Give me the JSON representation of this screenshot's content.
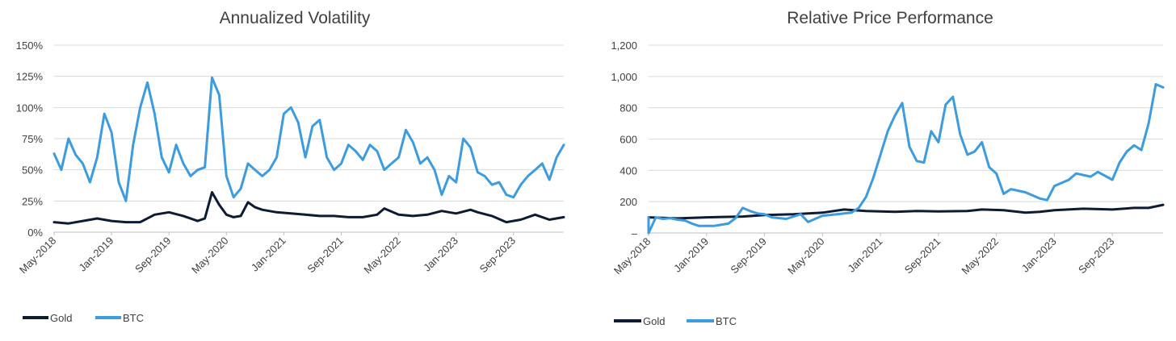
{
  "colors": {
    "gold": "#0d1b33",
    "btc": "#3d9be0",
    "grid": "#d9d9d9",
    "text": "#404040"
  },
  "chart_data": [
    {
      "type": "line",
      "title": "Annualized Volatility",
      "xlabel": "",
      "ylabel": "",
      "x_start": "2018-05",
      "x_end": "2024-04",
      "ylim": [
        0,
        150
      ],
      "yticks": [
        0,
        25,
        50,
        75,
        100,
        125,
        150
      ],
      "ytick_labels": [
        "0%",
        "25%",
        "50%",
        "75%",
        "100%",
        "125%",
        "150%"
      ],
      "xtick_labels": [
        "May-2018",
        "Jan-2019",
        "Sep-2019",
        "May-2020",
        "Jan-2021",
        "Sep-2021",
        "May-2022",
        "Jan-2023",
        "Sep-2023"
      ],
      "xtick_dates": [
        "2018-05",
        "2019-01",
        "2019-09",
        "2020-05",
        "2021-01",
        "2021-09",
        "2022-05",
        "2023-01",
        "2023-09"
      ],
      "grid": true,
      "legend": "bottom-left",
      "series": [
        {
          "name": "Gold",
          "color_key": "gold",
          "points": [
            [
              "2018-05",
              8
            ],
            [
              "2018-07",
              7
            ],
            [
              "2018-09",
              9
            ],
            [
              "2018-11",
              11
            ],
            [
              "2019-01",
              9
            ],
            [
              "2019-03",
              8
            ],
            [
              "2019-05",
              8
            ],
            [
              "2019-07",
              14
            ],
            [
              "2019-09",
              16
            ],
            [
              "2019-11",
              13
            ],
            [
              "2020-01",
              9
            ],
            [
              "2020-02",
              11
            ],
            [
              "2020-03",
              32
            ],
            [
              "2020-04",
              22
            ],
            [
              "2020-05",
              14
            ],
            [
              "2020-06",
              12
            ],
            [
              "2020-07",
              13
            ],
            [
              "2020-08",
              24
            ],
            [
              "2020-09",
              20
            ],
            [
              "2020-10",
              18
            ],
            [
              "2020-12",
              16
            ],
            [
              "2021-02",
              15
            ],
            [
              "2021-04",
              14
            ],
            [
              "2021-06",
              13
            ],
            [
              "2021-08",
              13
            ],
            [
              "2021-10",
              12
            ],
            [
              "2021-12",
              12
            ],
            [
              "2022-02",
              14
            ],
            [
              "2022-03",
              19
            ],
            [
              "2022-05",
              14
            ],
            [
              "2022-07",
              13
            ],
            [
              "2022-09",
              14
            ],
            [
              "2022-11",
              17
            ],
            [
              "2023-01",
              15
            ],
            [
              "2023-03",
              18
            ],
            [
              "2023-04",
              16
            ],
            [
              "2023-06",
              13
            ],
            [
              "2023-08",
              8
            ],
            [
              "2023-10",
              10
            ],
            [
              "2023-12",
              14
            ],
            [
              "2024-02",
              10
            ],
            [
              "2024-04",
              12
            ]
          ]
        },
        {
          "name": "BTC",
          "color_key": "btc",
          "points": [
            [
              "2018-05",
              63
            ],
            [
              "2018-06",
              50
            ],
            [
              "2018-07",
              75
            ],
            [
              "2018-08",
              62
            ],
            [
              "2018-09",
              55
            ],
            [
              "2018-10",
              40
            ],
            [
              "2018-11",
              60
            ],
            [
              "2018-12",
              95
            ],
            [
              "2019-01",
              80
            ],
            [
              "2019-02",
              40
            ],
            [
              "2019-03",
              25
            ],
            [
              "2019-04",
              70
            ],
            [
              "2019-05",
              100
            ],
            [
              "2019-06",
              120
            ],
            [
              "2019-07",
              95
            ],
            [
              "2019-08",
              60
            ],
            [
              "2019-09",
              48
            ],
            [
              "2019-10",
              70
            ],
            [
              "2019-11",
              55
            ],
            [
              "2019-12",
              45
            ],
            [
              "2020-01",
              50
            ],
            [
              "2020-02",
              52
            ],
            [
              "2020-03",
              124
            ],
            [
              "2020-04",
              110
            ],
            [
              "2020-05",
              45
            ],
            [
              "2020-06",
              28
            ],
            [
              "2020-07",
              35
            ],
            [
              "2020-08",
              55
            ],
            [
              "2020-09",
              50
            ],
            [
              "2020-10",
              45
            ],
            [
              "2020-11",
              50
            ],
            [
              "2020-12",
              60
            ],
            [
              "2021-01",
              95
            ],
            [
              "2021-02",
              100
            ],
            [
              "2021-03",
              88
            ],
            [
              "2021-04",
              60
            ],
            [
              "2021-05",
              85
            ],
            [
              "2021-06",
              90
            ],
            [
              "2021-07",
              60
            ],
            [
              "2021-08",
              50
            ],
            [
              "2021-09",
              55
            ],
            [
              "2021-10",
              70
            ],
            [
              "2021-11",
              65
            ],
            [
              "2021-12",
              58
            ],
            [
              "2022-01",
              70
            ],
            [
              "2022-02",
              65
            ],
            [
              "2022-03",
              50
            ],
            [
              "2022-04",
              55
            ],
            [
              "2022-05",
              60
            ],
            [
              "2022-06",
              82
            ],
            [
              "2022-07",
              72
            ],
            [
              "2022-08",
              55
            ],
            [
              "2022-09",
              60
            ],
            [
              "2022-10",
              50
            ],
            [
              "2022-11",
              30
            ],
            [
              "2022-12",
              45
            ],
            [
              "2023-01",
              40
            ],
            [
              "2023-02",
              75
            ],
            [
              "2023-03",
              68
            ],
            [
              "2023-04",
              48
            ],
            [
              "2023-05",
              45
            ],
            [
              "2023-06",
              38
            ],
            [
              "2023-07",
              40
            ],
            [
              "2023-08",
              30
            ],
            [
              "2023-09",
              28
            ],
            [
              "2023-10",
              38
            ],
            [
              "2023-11",
              45
            ],
            [
              "2023-12",
              50
            ],
            [
              "2024-01",
              55
            ],
            [
              "2024-02",
              42
            ],
            [
              "2024-03",
              60
            ],
            [
              "2024-04",
              70
            ]
          ]
        }
      ]
    },
    {
      "type": "line",
      "title": "Relative Price Performance",
      "xlabel": "",
      "ylabel": "",
      "x_start": "2018-05",
      "x_end": "2024-04",
      "ylim": [
        0,
        1200
      ],
      "yticks": [
        0,
        200,
        400,
        600,
        800,
        1000,
        1200
      ],
      "ytick_labels": [
        "–",
        "200",
        "400",
        "600",
        "800",
        "1,000",
        "1,200"
      ],
      "xtick_labels": [
        "May-2018",
        "Jan-2019",
        "Sep-2019",
        "May-2020",
        "Jan-2021",
        "Sep-2021",
        "May-2022",
        "Jan-2023",
        "Sep-2023"
      ],
      "xtick_dates": [
        "2018-05",
        "2019-01",
        "2019-09",
        "2020-05",
        "2021-01",
        "2021-09",
        "2022-05",
        "2023-01",
        "2023-09"
      ],
      "grid": true,
      "legend": "bottom-left",
      "series": [
        {
          "name": "Gold",
          "color_key": "gold",
          "points": [
            [
              "2018-05",
              100
            ],
            [
              "2018-09",
              93
            ],
            [
              "2019-01",
              100
            ],
            [
              "2019-06",
              105
            ],
            [
              "2019-09",
              115
            ],
            [
              "2020-01",
              120
            ],
            [
              "2020-05",
              130
            ],
            [
              "2020-08",
              150
            ],
            [
              "2020-11",
              140
            ],
            [
              "2021-03",
              135
            ],
            [
              "2021-06",
              140
            ],
            [
              "2021-09",
              138
            ],
            [
              "2022-01",
              140
            ],
            [
              "2022-03",
              150
            ],
            [
              "2022-06",
              145
            ],
            [
              "2022-09",
              130
            ],
            [
              "2022-11",
              135
            ],
            [
              "2023-01",
              145
            ],
            [
              "2023-05",
              155
            ],
            [
              "2023-09",
              150
            ],
            [
              "2023-12",
              160
            ],
            [
              "2024-02",
              160
            ],
            [
              "2024-04",
              180
            ]
          ]
        },
        {
          "name": "BTC",
          "color_key": "btc",
          "points": [
            [
              "2018-05",
              100
            ],
            [
              "2018-05",
              0
            ],
            [
              "2018-06",
              100
            ],
            [
              "2018-07",
              90
            ],
            [
              "2018-08",
              95
            ],
            [
              "2018-09",
              85
            ],
            [
              "2018-10",
              80
            ],
            [
              "2018-11",
              60
            ],
            [
              "2018-12",
              45
            ],
            [
              "2019-02",
              45
            ],
            [
              "2019-04",
              60
            ],
            [
              "2019-05",
              95
            ],
            [
              "2019-06",
              160
            ],
            [
              "2019-07",
              140
            ],
            [
              "2019-08",
              125
            ],
            [
              "2019-09",
              120
            ],
            [
              "2019-10",
              100
            ],
            [
              "2019-12",
              90
            ],
            [
              "2020-02",
              120
            ],
            [
              "2020-03",
              70
            ],
            [
              "2020-05",
              110
            ],
            [
              "2020-07",
              120
            ],
            [
              "2020-09",
              130
            ],
            [
              "2020-10",
              160
            ],
            [
              "2020-11",
              230
            ],
            [
              "2020-12",
              350
            ],
            [
              "2021-01",
              500
            ],
            [
              "2021-02",
              650
            ],
            [
              "2021-03",
              750
            ],
            [
              "2021-04",
              830
            ],
            [
              "2021-05",
              550
            ],
            [
              "2021-06",
              460
            ],
            [
              "2021-07",
              450
            ],
            [
              "2021-08",
              650
            ],
            [
              "2021-09",
              580
            ],
            [
              "2021-10",
              820
            ],
            [
              "2021-11",
              870
            ],
            [
              "2021-12",
              630
            ],
            [
              "2022-01",
              500
            ],
            [
              "2022-02",
              520
            ],
            [
              "2022-03",
              580
            ],
            [
              "2022-04",
              420
            ],
            [
              "2022-05",
              380
            ],
            [
              "2022-06",
              250
            ],
            [
              "2022-07",
              280
            ],
            [
              "2022-09",
              260
            ],
            [
              "2022-11",
              220
            ],
            [
              "2022-12",
              210
            ],
            [
              "2023-01",
              300
            ],
            [
              "2023-03",
              340
            ],
            [
              "2023-04",
              380
            ],
            [
              "2023-06",
              360
            ],
            [
              "2023-07",
              390
            ],
            [
              "2023-09",
              340
            ],
            [
              "2023-10",
              450
            ],
            [
              "2023-11",
              520
            ],
            [
              "2023-12",
              560
            ],
            [
              "2024-01",
              530
            ],
            [
              "2024-02",
              700
            ],
            [
              "2024-03",
              950
            ],
            [
              "2024-04",
              930
            ]
          ]
        }
      ]
    }
  ]
}
